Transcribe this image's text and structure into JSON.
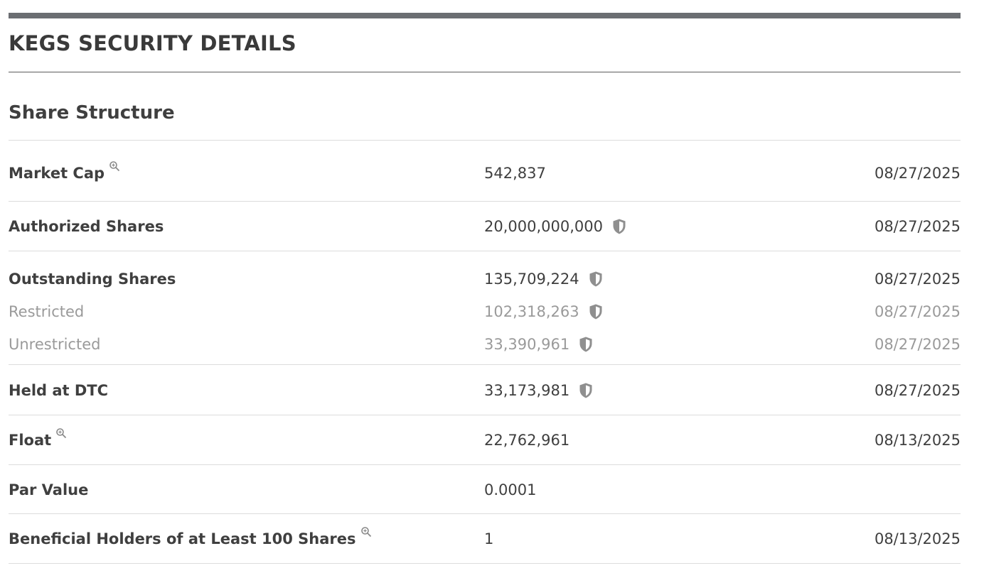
{
  "header": {
    "title": "KEGS SECURITY DETAILS"
  },
  "section": {
    "title": "Share Structure"
  },
  "rows": {
    "market_cap": {
      "label": "Market Cap",
      "value": "542,837",
      "date": "08/27/2025"
    },
    "authorized": {
      "label": "Authorized Shares",
      "value": "20,000,000,000",
      "date": "08/27/2025"
    },
    "outstanding": {
      "label": "Outstanding Shares",
      "value": "135,709,224",
      "date": "08/27/2025"
    },
    "restricted": {
      "label": "Restricted",
      "value": "102,318,263",
      "date": "08/27/2025"
    },
    "unrestricted": {
      "label": "Unrestricted",
      "value": "33,390,961",
      "date": "08/27/2025"
    },
    "held_dtc": {
      "label": "Held at DTC",
      "value": "33,173,981",
      "date": "08/27/2025"
    },
    "float": {
      "label": "Float",
      "value": "22,762,961",
      "date": "08/13/2025"
    },
    "par_value": {
      "label": "Par Value",
      "value": "0.0001",
      "date": ""
    },
    "beneficial": {
      "label": "Beneficial Holders of at Least 100 Shares",
      "value": "1",
      "date": "08/13/2025"
    }
  },
  "icons": {
    "zoom": "zoom-in-icon",
    "verified": "shield-icon"
  },
  "colors": {
    "top_bar": "#6b6e72",
    "text": "#3f3f3f",
    "muted_text": "#9a9a9a",
    "divider": "#dcdcdc"
  }
}
